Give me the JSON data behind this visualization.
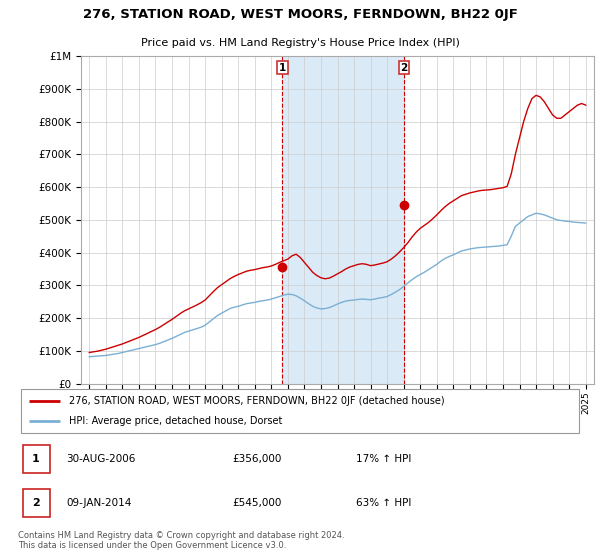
{
  "title": "276, STATION ROAD, WEST MOORS, FERNDOWN, BH22 0JF",
  "subtitle": "Price paid vs. HM Land Registry's House Price Index (HPI)",
  "grid_color": "#cccccc",
  "highlight_bg_color": "#daeaf7",
  "red_line_color": "#cc0000",
  "blue_line_color": "#7bafd4",
  "marker1_x": 2006.667,
  "marker1_y": 356000,
  "marker2_x": 2014.033,
  "marker2_y": 545000,
  "ylim": [
    0,
    1000000
  ],
  "yticks": [
    0,
    100000,
    200000,
    300000,
    400000,
    500000,
    600000,
    700000,
    800000,
    900000,
    1000000
  ],
  "ytick_labels": [
    "£0",
    "£100K",
    "£200K",
    "£300K",
    "£400K",
    "£500K",
    "£600K",
    "£700K",
    "£800K",
    "£900K",
    "£1M"
  ],
  "xlim_left": 1994.5,
  "xlim_right": 2025.5,
  "legend_line1": "276, STATION ROAD, WEST MOORS, FERNDOWN, BH22 0JF (detached house)",
  "legend_line2": "HPI: Average price, detached house, Dorset",
  "annotation1_date": "30-AUG-2006",
  "annotation1_price": "£356,000",
  "annotation1_hpi": "17% ↑ HPI",
  "annotation2_date": "09-JAN-2014",
  "annotation2_price": "£545,000",
  "annotation2_hpi": "63% ↑ HPI",
  "footer": "Contains HM Land Registry data © Crown copyright and database right 2024.\nThis data is licensed under the Open Government Licence v3.0.",
  "hpi_x": [
    1995.0,
    1995.25,
    1995.5,
    1995.75,
    1996.0,
    1996.25,
    1996.5,
    1996.75,
    1997.0,
    1997.25,
    1997.5,
    1997.75,
    1998.0,
    1998.25,
    1998.5,
    1998.75,
    1999.0,
    1999.25,
    1999.5,
    1999.75,
    2000.0,
    2000.25,
    2000.5,
    2000.75,
    2001.0,
    2001.25,
    2001.5,
    2001.75,
    2002.0,
    2002.25,
    2002.5,
    2002.75,
    2003.0,
    2003.25,
    2003.5,
    2003.75,
    2004.0,
    2004.25,
    2004.5,
    2004.75,
    2005.0,
    2005.25,
    2005.5,
    2005.75,
    2006.0,
    2006.25,
    2006.5,
    2006.75,
    2007.0,
    2007.25,
    2007.5,
    2007.75,
    2008.0,
    2008.25,
    2008.5,
    2008.75,
    2009.0,
    2009.25,
    2009.5,
    2009.75,
    2010.0,
    2010.25,
    2010.5,
    2010.75,
    2011.0,
    2011.25,
    2011.5,
    2011.75,
    2012.0,
    2012.25,
    2012.5,
    2012.75,
    2013.0,
    2013.25,
    2013.5,
    2013.75,
    2014.0,
    2014.25,
    2014.5,
    2014.75,
    2015.0,
    2015.25,
    2015.5,
    2015.75,
    2016.0,
    2016.25,
    2016.5,
    2016.75,
    2017.0,
    2017.25,
    2017.5,
    2017.75,
    2018.0,
    2018.25,
    2018.5,
    2018.75,
    2019.0,
    2019.25,
    2019.5,
    2019.75,
    2020.0,
    2020.25,
    2020.5,
    2020.75,
    2021.0,
    2021.25,
    2021.5,
    2021.75,
    2022.0,
    2022.25,
    2022.5,
    2022.75,
    2023.0,
    2023.25,
    2023.5,
    2023.75,
    2024.0,
    2024.25,
    2024.5,
    2024.75,
    2025.0
  ],
  "hpi_y": [
    82000,
    83000,
    84000,
    85000,
    86000,
    88000,
    90000,
    92000,
    95000,
    98000,
    101000,
    104000,
    107000,
    110000,
    113000,
    116000,
    119000,
    123000,
    128000,
    133000,
    138000,
    144000,
    150000,
    156000,
    160000,
    164000,
    168000,
    172000,
    178000,
    188000,
    198000,
    208000,
    215000,
    222000,
    229000,
    233000,
    236000,
    240000,
    244000,
    246000,
    248000,
    251000,
    253000,
    255000,
    258000,
    262000,
    266000,
    270000,
    273000,
    272000,
    268000,
    261000,
    253000,
    244000,
    236000,
    231000,
    228000,
    229000,
    232000,
    237000,
    243000,
    248000,
    252000,
    254000,
    255000,
    257000,
    258000,
    257000,
    256000,
    258000,
    261000,
    263000,
    266000,
    272000,
    279000,
    287000,
    297000,
    307000,
    317000,
    326000,
    333000,
    340000,
    348000,
    356000,
    364000,
    374000,
    382000,
    388000,
    393000,
    399000,
    405000,
    408000,
    411000,
    413000,
    415000,
    416000,
    417000,
    418000,
    419000,
    420000,
    422000,
    424000,
    450000,
    480000,
    490000,
    500000,
    510000,
    515000,
    520000,
    518000,
    515000,
    510000,
    505000,
    500000,
    498000,
    496000,
    495000,
    493000,
    492000,
    491000,
    490000
  ],
  "prop_x": [
    1995.0,
    1995.25,
    1995.5,
    1995.75,
    1996.0,
    1996.25,
    1996.5,
    1996.75,
    1997.0,
    1997.25,
    1997.5,
    1997.75,
    1998.0,
    1998.25,
    1998.5,
    1998.75,
    1999.0,
    1999.25,
    1999.5,
    1999.75,
    2000.0,
    2000.25,
    2000.5,
    2000.75,
    2001.0,
    2001.25,
    2001.5,
    2001.75,
    2002.0,
    2002.25,
    2002.5,
    2002.75,
    2003.0,
    2003.25,
    2003.5,
    2003.75,
    2004.0,
    2004.25,
    2004.5,
    2004.75,
    2005.0,
    2005.25,
    2005.5,
    2005.75,
    2006.0,
    2006.25,
    2006.5,
    2006.75,
    2007.0,
    2007.25,
    2007.5,
    2007.75,
    2008.0,
    2008.25,
    2008.5,
    2008.75,
    2009.0,
    2009.25,
    2009.5,
    2009.75,
    2010.0,
    2010.25,
    2010.5,
    2010.75,
    2011.0,
    2011.25,
    2011.5,
    2011.75,
    2012.0,
    2012.25,
    2012.5,
    2012.75,
    2013.0,
    2013.25,
    2013.5,
    2013.75,
    2014.0,
    2014.25,
    2014.5,
    2014.75,
    2015.0,
    2015.25,
    2015.5,
    2015.75,
    2016.0,
    2016.25,
    2016.5,
    2016.75,
    2017.0,
    2017.25,
    2017.5,
    2017.75,
    2018.0,
    2018.25,
    2018.5,
    2018.75,
    2019.0,
    2019.25,
    2019.5,
    2019.75,
    2020.0,
    2020.25,
    2020.5,
    2020.75,
    2021.0,
    2021.25,
    2021.5,
    2021.75,
    2022.0,
    2022.25,
    2022.5,
    2022.75,
    2023.0,
    2023.25,
    2023.5,
    2023.75,
    2024.0,
    2024.25,
    2024.5,
    2024.75,
    2025.0
  ],
  "prop_y": [
    95000,
    97000,
    99000,
    102000,
    105000,
    109000,
    113000,
    117000,
    121000,
    126000,
    131000,
    136000,
    141000,
    147000,
    153000,
    159000,
    165000,
    172000,
    180000,
    188000,
    196000,
    205000,
    214000,
    222000,
    228000,
    234000,
    240000,
    247000,
    255000,
    268000,
    281000,
    293000,
    302000,
    311000,
    320000,
    327000,
    333000,
    338000,
    343000,
    346000,
    348000,
    351000,
    354000,
    356000,
    359000,
    364000,
    370000,
    375000,
    380000,
    390000,
    395000,
    385000,
    370000,
    355000,
    340000,
    330000,
    323000,
    320000,
    322000,
    328000,
    335000,
    342000,
    350000,
    356000,
    360000,
    364000,
    366000,
    364000,
    360000,
    362000,
    365000,
    368000,
    372000,
    380000,
    390000,
    402000,
    415000,
    430000,
    447000,
    462000,
    474000,
    483000,
    492000,
    503000,
    515000,
    528000,
    540000,
    550000,
    558000,
    566000,
    574000,
    578000,
    582000,
    585000,
    588000,
    590000,
    591000,
    592000,
    594000,
    596000,
    598000,
    602000,
    640000,
    700000,
    750000,
    800000,
    840000,
    870000,
    880000,
    875000,
    860000,
    840000,
    820000,
    810000,
    810000,
    820000,
    830000,
    840000,
    850000,
    855000,
    850000
  ]
}
